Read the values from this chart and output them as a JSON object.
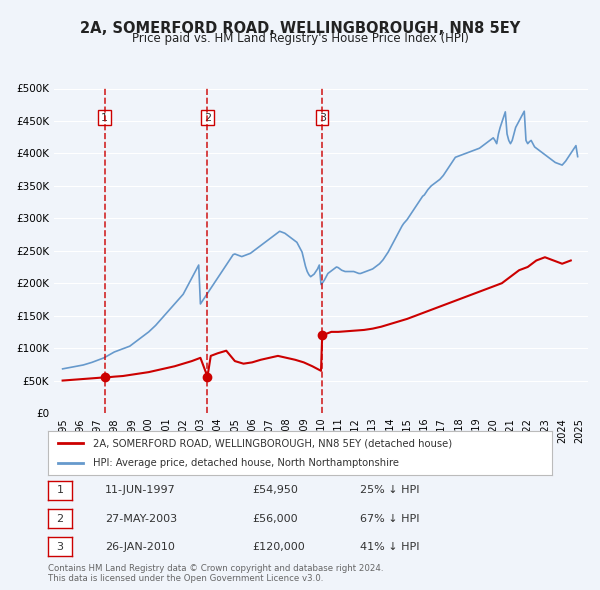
{
  "title": "2A, SOMERFORD ROAD, WELLINGBOROUGH, NN8 5EY",
  "subtitle": "Price paid vs. HM Land Registry's House Price Index (HPI)",
  "title_color": "#222222",
  "bg_color": "#f0f4fa",
  "plot_bg_color": "#f0f4fa",
  "grid_color": "#ffffff",
  "ylim": [
    0,
    500000
  ],
  "yticks": [
    0,
    50000,
    100000,
    150000,
    200000,
    250000,
    300000,
    350000,
    400000,
    450000,
    500000
  ],
  "ytick_labels": [
    "£0",
    "£50K",
    "£100K",
    "£150K",
    "£200K",
    "£250K",
    "£300K",
    "£350K",
    "£400K",
    "£450K",
    "£500K"
  ],
  "xlim_start": 1994.5,
  "xlim_end": 2025.5,
  "xticks": [
    1995,
    1996,
    1997,
    1998,
    1999,
    2000,
    2001,
    2002,
    2003,
    2004,
    2005,
    2006,
    2007,
    2008,
    2009,
    2010,
    2011,
    2012,
    2013,
    2014,
    2015,
    2016,
    2017,
    2018,
    2019,
    2020,
    2021,
    2022,
    2023,
    2024,
    2025
  ],
  "price_paid_color": "#cc0000",
  "hpi_color": "#6699cc",
  "marker_color": "#cc0000",
  "vline_color": "#cc0000",
  "sale_dates": [
    1997.44,
    2003.41,
    2010.07
  ],
  "sale_prices": [
    54950,
    56000,
    120000
  ],
  "sale_labels": [
    "1",
    "2",
    "3"
  ],
  "legend_line1": "2A, SOMERFORD ROAD, WELLINGBOROUGH, NN8 5EY (detached house)",
  "legend_line2": "HPI: Average price, detached house, North Northamptonshire",
  "table_rows": [
    {
      "num": "1",
      "date": "11-JUN-1997",
      "price": "£54,950",
      "hpi": "25% ↓ HPI"
    },
    {
      "num": "2",
      "date": "27-MAY-2003",
      "price": "£56,000",
      "hpi": "67% ↓ HPI"
    },
    {
      "num": "3",
      "date": "26-JAN-2010",
      "price": "£120,000",
      "hpi": "41% ↓ HPI"
    }
  ],
  "footer": "Contains HM Land Registry data © Crown copyright and database right 2024.\nThis data is licensed under the Open Government Licence v3.0.",
  "hpi_data": {
    "years": [
      1995.0,
      1995.1,
      1995.2,
      1995.3,
      1995.4,
      1995.5,
      1995.6,
      1995.7,
      1995.8,
      1995.9,
      1996.0,
      1996.1,
      1996.2,
      1996.3,
      1996.4,
      1996.5,
      1996.6,
      1996.7,
      1996.8,
      1996.9,
      1997.0,
      1997.1,
      1997.2,
      1997.3,
      1997.4,
      1997.5,
      1997.6,
      1997.7,
      1997.8,
      1997.9,
      1998.0,
      1998.1,
      1998.2,
      1998.3,
      1998.4,
      1998.5,
      1998.6,
      1998.7,
      1998.8,
      1998.9,
      1999.0,
      1999.1,
      1999.2,
      1999.3,
      1999.4,
      1999.5,
      1999.6,
      1999.7,
      1999.8,
      1999.9,
      2000.0,
      2000.1,
      2000.2,
      2000.3,
      2000.4,
      2000.5,
      2000.6,
      2000.7,
      2000.8,
      2000.9,
      2001.0,
      2001.1,
      2001.2,
      2001.3,
      2001.4,
      2001.5,
      2001.6,
      2001.7,
      2001.8,
      2001.9,
      2002.0,
      2002.1,
      2002.2,
      2002.3,
      2002.4,
      2002.5,
      2002.6,
      2002.7,
      2002.8,
      2002.9,
      2003.0,
      2003.1,
      2003.2,
      2003.3,
      2003.4,
      2003.5,
      2003.6,
      2003.7,
      2003.8,
      2003.9,
      2004.0,
      2004.1,
      2004.2,
      2004.3,
      2004.4,
      2004.5,
      2004.6,
      2004.7,
      2004.8,
      2004.9,
      2005.0,
      2005.1,
      2005.2,
      2005.3,
      2005.4,
      2005.5,
      2005.6,
      2005.7,
      2005.8,
      2005.9,
      2006.0,
      2006.1,
      2006.2,
      2006.3,
      2006.4,
      2006.5,
      2006.6,
      2006.7,
      2006.8,
      2006.9,
      2007.0,
      2007.1,
      2007.2,
      2007.3,
      2007.4,
      2007.5,
      2007.6,
      2007.7,
      2007.8,
      2007.9,
      2008.0,
      2008.1,
      2008.2,
      2008.3,
      2008.4,
      2008.5,
      2008.6,
      2008.7,
      2008.8,
      2008.9,
      2009.0,
      2009.1,
      2009.2,
      2009.3,
      2009.4,
      2009.5,
      2009.6,
      2009.7,
      2009.8,
      2009.9,
      2010.0,
      2010.1,
      2010.2,
      2010.3,
      2010.4,
      2010.5,
      2010.6,
      2010.7,
      2010.8,
      2010.9,
      2011.0,
      2011.1,
      2011.2,
      2011.3,
      2011.4,
      2011.5,
      2011.6,
      2011.7,
      2011.8,
      2011.9,
      2012.0,
      2012.1,
      2012.2,
      2012.3,
      2012.4,
      2012.5,
      2012.6,
      2012.7,
      2012.8,
      2012.9,
      2013.0,
      2013.1,
      2013.2,
      2013.3,
      2013.4,
      2013.5,
      2013.6,
      2013.7,
      2013.8,
      2013.9,
      2014.0,
      2014.1,
      2014.2,
      2014.3,
      2014.4,
      2014.5,
      2014.6,
      2014.7,
      2014.8,
      2014.9,
      2015.0,
      2015.1,
      2015.2,
      2015.3,
      2015.4,
      2015.5,
      2015.6,
      2015.7,
      2015.8,
      2015.9,
      2016.0,
      2016.1,
      2016.2,
      2016.3,
      2016.4,
      2016.5,
      2016.6,
      2016.7,
      2016.8,
      2016.9,
      2017.0,
      2017.1,
      2017.2,
      2017.3,
      2017.4,
      2017.5,
      2017.6,
      2017.7,
      2017.8,
      2017.9,
      2018.0,
      2018.1,
      2018.2,
      2018.3,
      2018.4,
      2018.5,
      2018.6,
      2018.7,
      2018.8,
      2018.9,
      2019.0,
      2019.1,
      2019.2,
      2019.3,
      2019.4,
      2019.5,
      2019.6,
      2019.7,
      2019.8,
      2019.9,
      2020.0,
      2020.1,
      2020.2,
      2020.3,
      2020.4,
      2020.5,
      2020.6,
      2020.7,
      2020.8,
      2020.9,
      2021.0,
      2021.1,
      2021.2,
      2021.3,
      2021.4,
      2021.5,
      2021.6,
      2021.7,
      2021.8,
      2021.9,
      2022.0,
      2022.1,
      2022.2,
      2022.3,
      2022.4,
      2022.5,
      2022.6,
      2022.7,
      2022.8,
      2022.9,
      2023.0,
      2023.1,
      2023.2,
      2023.3,
      2023.4,
      2023.5,
      2023.6,
      2023.7,
      2023.8,
      2023.9,
      2024.0,
      2024.1,
      2024.2,
      2024.3,
      2024.4,
      2024.5,
      2024.6,
      2024.7,
      2024.8,
      2024.9
    ],
    "values": [
      68000,
      68500,
      69000,
      69500,
      70000,
      70500,
      71000,
      71500,
      72000,
      72500,
      73000,
      73500,
      74000,
      74800,
      75600,
      76400,
      77200,
      78000,
      79000,
      80000,
      81000,
      82000,
      83000,
      84000,
      85000,
      86500,
      88000,
      89500,
      91000,
      92500,
      94000,
      95000,
      96000,
      97000,
      98000,
      99000,
      100000,
      101000,
      102000,
      103000,
      105000,
      107000,
      109000,
      111000,
      113000,
      115000,
      117000,
      119000,
      121000,
      123000,
      125000,
      127500,
      130000,
      132500,
      135000,
      138000,
      141000,
      144000,
      147000,
      150000,
      153000,
      156000,
      159000,
      162000,
      165000,
      168000,
      171000,
      174000,
      177000,
      180000,
      183000,
      188000,
      193000,
      198000,
      203000,
      208000,
      213000,
      218000,
      223000,
      228000,
      168000,
      172000,
      176000,
      180000,
      184000,
      188000,
      192000,
      196000,
      200000,
      204000,
      208000,
      212000,
      216000,
      220000,
      224000,
      228000,
      232000,
      236000,
      240000,
      244000,
      245000,
      244000,
      243000,
      242000,
      241000,
      242000,
      243000,
      244000,
      245000,
      246000,
      248000,
      250000,
      252000,
      254000,
      256000,
      258000,
      260000,
      262000,
      264000,
      266000,
      268000,
      270000,
      272000,
      274000,
      276000,
      278000,
      280000,
      279000,
      278000,
      277000,
      275000,
      273000,
      271000,
      269000,
      267000,
      265000,
      263000,
      258000,
      253000,
      248000,
      237000,
      226000,
      218000,
      213000,
      210000,
      212000,
      214000,
      218000,
      222000,
      228000,
      198000,
      201000,
      205000,
      210000,
      215000,
      217000,
      219000,
      221000,
      223000,
      225000,
      224000,
      222000,
      220000,
      219000,
      218000,
      218000,
      218000,
      218000,
      218000,
      218000,
      217000,
      216000,
      215000,
      215000,
      216000,
      217000,
      218000,
      219000,
      220000,
      221000,
      222000,
      224000,
      226000,
      228000,
      230000,
      233000,
      236000,
      240000,
      244000,
      248000,
      253000,
      258000,
      263000,
      268000,
      273000,
      278000,
      283000,
      288000,
      292000,
      295000,
      298000,
      302000,
      306000,
      310000,
      314000,
      318000,
      322000,
      326000,
      330000,
      334000,
      336000,
      340000,
      344000,
      347000,
      350000,
      352000,
      354000,
      356000,
      358000,
      360000,
      363000,
      366000,
      370000,
      374000,
      378000,
      382000,
      386000,
      390000,
      394000,
      395000,
      396000,
      397000,
      398000,
      399000,
      400000,
      401000,
      402000,
      403000,
      404000,
      405000,
      406000,
      407000,
      408000,
      410000,
      412000,
      414000,
      416000,
      418000,
      420000,
      422000,
      424000,
      420000,
      415000,
      430000,
      440000,
      448000,
      456000,
      464000,
      430000,
      420000,
      415000,
      420000,
      430000,
      440000,
      445000,
      450000,
      455000,
      460000,
      465000,
      420000,
      415000,
      418000,
      420000,
      415000,
      410000,
      408000,
      406000,
      404000,
      402000,
      400000,
      398000,
      396000,
      394000,
      392000,
      390000,
      388000,
      386000,
      385000,
      384000,
      383000,
      382000,
      385000,
      388000,
      392000,
      396000,
      400000,
      404000,
      408000,
      412000,
      395000
    ]
  },
  "price_paid_data": {
    "years": [
      1995.0,
      1995.5,
      1996.0,
      1996.5,
      1997.0,
      1997.44,
      1997.6,
      1998.0,
      1998.5,
      1999.0,
      1999.5,
      2000.0,
      2000.5,
      2001.0,
      2001.5,
      2002.0,
      2002.5,
      2003.0,
      2003.41,
      2003.6,
      2004.0,
      2004.5,
      2005.0,
      2005.5,
      2006.0,
      2006.5,
      2007.0,
      2007.5,
      2008.0,
      2008.5,
      2009.0,
      2009.5,
      2010.0,
      2010.07,
      2010.3,
      2010.6,
      2011.0,
      2011.5,
      2012.0,
      2012.5,
      2013.0,
      2013.5,
      2014.0,
      2014.5,
      2015.0,
      2015.5,
      2016.0,
      2016.5,
      2017.0,
      2017.5,
      2018.0,
      2018.5,
      2019.0,
      2019.5,
      2020.0,
      2020.5,
      2021.0,
      2021.5,
      2022.0,
      2022.5,
      2023.0,
      2023.5,
      2024.0,
      2024.5
    ],
    "values": [
      50000,
      51000,
      52000,
      53000,
      54000,
      54950,
      55000,
      56000,
      57000,
      59000,
      61000,
      63000,
      66000,
      69000,
      72000,
      76000,
      80000,
      85000,
      56000,
      88000,
      92000,
      96000,
      80000,
      76000,
      78000,
      82000,
      85000,
      88000,
      85000,
      82000,
      78000,
      72000,
      65000,
      120000,
      122000,
      125000,
      125000,
      126000,
      127000,
      128000,
      130000,
      133000,
      137000,
      141000,
      145000,
      150000,
      155000,
      160000,
      165000,
      170000,
      175000,
      180000,
      185000,
      190000,
      195000,
      200000,
      210000,
      220000,
      225000,
      235000,
      240000,
      235000,
      230000,
      235000
    ]
  }
}
